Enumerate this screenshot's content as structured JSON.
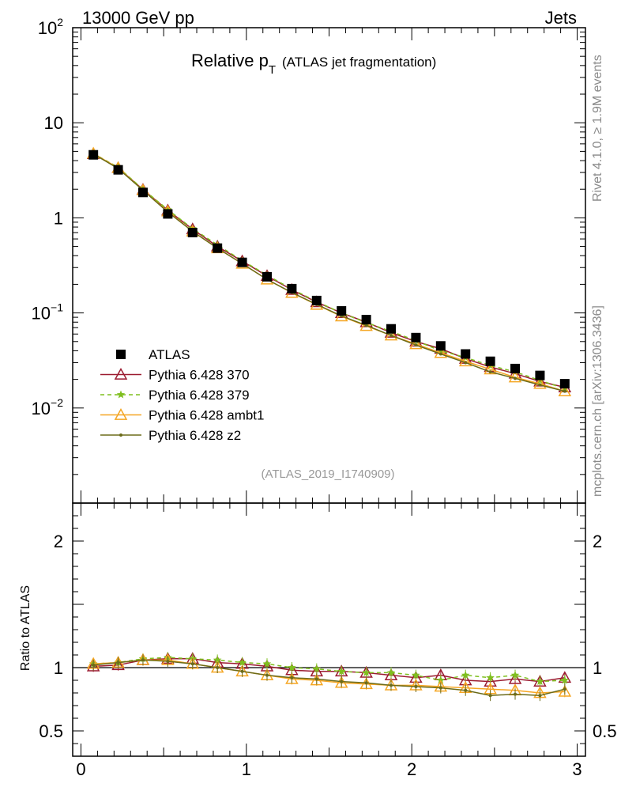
{
  "header": {
    "left": "13000 GeV pp",
    "right": "Jets"
  },
  "title": {
    "main": "Relative p",
    "sub": "T",
    "paren": "(ATLAS jet fragmentation)"
  },
  "side_text": {
    "rivet": "Rivet 4.1.0, ≥ 1.9M events",
    "mcplots": "mcplots.cern.ch [arXiv:1306.3436]"
  },
  "analysis_label": "(ATLAS_2019_I1740909)",
  "ratio_ylabel": "Ratio to ATLAS",
  "colors": {
    "atlas": "#000000",
    "p370": "#9b1b30",
    "p379": "#7fbf1f",
    "ambt1": "#f5a623",
    "z2": "#6b6b1a",
    "axis": "#000000",
    "muted": "#888888"
  },
  "chart_data": [
    {
      "type": "scatter",
      "name": "main",
      "yscale": "log",
      "xlim": [
        -0.05,
        3.05
      ],
      "ylim": [
        0.001,
        100
      ],
      "y_ticks": [
        {
          "value": 100,
          "label_base": "10",
          "label_exp": "2"
        },
        {
          "value": 10,
          "label_base": "10",
          "label_exp": ""
        },
        {
          "value": 1,
          "label_base": "1",
          "label_exp": ""
        },
        {
          "value": 0.1,
          "label_base": "10",
          "label_exp": "−1"
        },
        {
          "value": 0.01,
          "label_base": "10",
          "label_exp": "−2"
        }
      ],
      "legend_position": "lower-left",
      "x": [
        0.075,
        0.225,
        0.375,
        0.525,
        0.675,
        0.825,
        0.975,
        1.125,
        1.275,
        1.425,
        1.575,
        1.725,
        1.875,
        2.025,
        2.175,
        2.325,
        2.475,
        2.625,
        2.775,
        2.925
      ],
      "series": [
        {
          "name": "ATLAS",
          "key": "atlas",
          "marker": "square",
          "values": [
            4.6,
            3.2,
            1.85,
            1.1,
            0.7,
            0.48,
            0.34,
            0.24,
            0.18,
            0.135,
            0.105,
            0.085,
            0.068,
            0.055,
            0.045,
            0.037,
            0.031,
            0.026,
            0.022,
            0.018
          ]
        },
        {
          "name": "Pythia 6.428 370",
          "key": "p370",
          "marker": "triangle-open",
          "dash": "",
          "values": [
            4.7,
            3.35,
            1.98,
            1.2,
            0.76,
            0.5,
            0.35,
            0.245,
            0.175,
            0.13,
            0.1,
            0.08,
            0.062,
            0.05,
            0.042,
            0.033,
            0.027,
            0.023,
            0.019,
            0.0165
          ]
        },
        {
          "name": "Pythia 6.428 379",
          "key": "p379",
          "marker": "star",
          "dash": "5,4",
          "values": [
            4.75,
            3.4,
            2.0,
            1.22,
            0.77,
            0.52,
            0.355,
            0.25,
            0.178,
            0.132,
            0.1,
            0.079,
            0.064,
            0.051,
            0.04,
            0.034,
            0.028,
            0.024,
            0.0195,
            0.016
          ]
        },
        {
          "name": "Pythia 6.428 ambt1",
          "key": "ambt1",
          "marker": "triangle-open",
          "dash": "",
          "values": [
            4.75,
            3.35,
            1.95,
            1.17,
            0.72,
            0.48,
            0.33,
            0.225,
            0.163,
            0.122,
            0.092,
            0.073,
            0.058,
            0.047,
            0.038,
            0.031,
            0.0255,
            0.021,
            0.018,
            0.015
          ]
        },
        {
          "name": "Pythia 6.428 z2",
          "key": "z2",
          "marker": "dot",
          "dash": "",
          "values": [
            4.7,
            3.3,
            1.95,
            1.15,
            0.72,
            0.48,
            0.33,
            0.225,
            0.164,
            0.123,
            0.093,
            0.074,
            0.058,
            0.046,
            0.037,
            0.03,
            0.024,
            0.0205,
            0.0175,
            0.015
          ]
        }
      ]
    },
    {
      "type": "line",
      "name": "ratio",
      "xlim": [
        -0.05,
        3.05
      ],
      "ylim": [
        0.3,
        2.3
      ],
      "xlabel": "",
      "ylabel": "Ratio to ATLAS",
      "reference_line": 1,
      "x_ticks": [
        {
          "value": 0,
          "label": "0"
        },
        {
          "value": 1,
          "label": "1"
        },
        {
          "value": 2,
          "label": "2"
        },
        {
          "value": 3,
          "label": "3"
        }
      ],
      "y_ticks": [
        {
          "value": 2,
          "label": "2"
        },
        {
          "value": 1,
          "label": "1"
        },
        {
          "value": 0.5,
          "label": "0.5"
        }
      ],
      "x": [
        0.075,
        0.225,
        0.375,
        0.525,
        0.675,
        0.825,
        0.975,
        1.125,
        1.275,
        1.425,
        1.575,
        1.725,
        1.875,
        2.025,
        2.175,
        2.325,
        2.475,
        2.625,
        2.775,
        2.925
      ],
      "series": [
        {
          "name": "Pythia 6.428 370",
          "key": "p370",
          "marker": "triangle-open",
          "values": [
            1.01,
            1.02,
            1.06,
            1.07,
            1.07,
            1.04,
            1.03,
            1.01,
            0.98,
            0.97,
            0.97,
            0.96,
            0.94,
            0.92,
            0.94,
            0.9,
            0.89,
            0.91,
            0.89,
            0.92
          ]
        },
        {
          "name": "Pythia 6.428 379",
          "key": "p379",
          "marker": "star",
          "values": [
            1.03,
            1.04,
            1.07,
            1.08,
            1.07,
            1.06,
            1.04,
            1.03,
            1.0,
            0.99,
            0.97,
            0.96,
            0.96,
            0.94,
            0.9,
            0.94,
            0.92,
            0.94,
            0.89,
            0.9
          ]
        },
        {
          "name": "Pythia 6.428 ambt1",
          "key": "ambt1",
          "marker": "triangle-open",
          "values": [
            1.03,
            1.04,
            1.06,
            1.06,
            1.03,
            1.0,
            0.97,
            0.94,
            0.91,
            0.9,
            0.88,
            0.87,
            0.86,
            0.86,
            0.85,
            0.84,
            0.83,
            0.82,
            0.8,
            0.81
          ]
        },
        {
          "name": "Pythia 6.428 z2",
          "key": "z2",
          "marker": "dot",
          "values": [
            1.02,
            1.04,
            1.06,
            1.05,
            1.03,
            1.0,
            0.97,
            0.94,
            0.92,
            0.91,
            0.89,
            0.88,
            0.86,
            0.85,
            0.84,
            0.82,
            0.78,
            0.79,
            0.78,
            0.83
          ]
        }
      ]
    }
  ]
}
